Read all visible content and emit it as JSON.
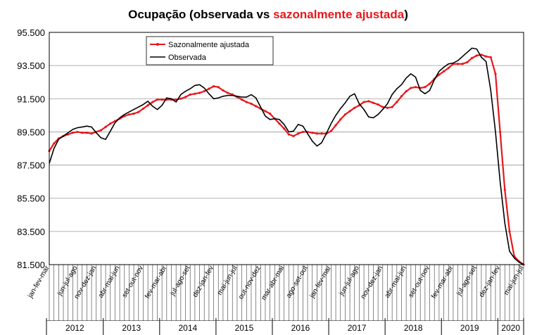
{
  "chart_data": {
    "type": "line",
    "title": {
      "part1": "Ocupação (observada vs ",
      "part2": "sazonalmente ajustada",
      "part3": ")"
    },
    "colors": {
      "observed": "#000000",
      "adjusted": "#e8171c"
    },
    "ylim": [
      81500,
      95500
    ],
    "y_ticks": [
      "95.500",
      "93.500",
      "91.500",
      "89.500",
      "87.500",
      "85.500",
      "83.500",
      "81.500"
    ],
    "y_tick_values": [
      95500,
      93500,
      91500,
      89500,
      87500,
      85500,
      83500,
      81500
    ],
    "grid": "horizontal",
    "legend": {
      "placement": "top-left",
      "entries": [
        "Sazonalmente ajustada",
        "Observada"
      ]
    },
    "n_periods": 102,
    "x_tick_labels": [
      {
        "i": 0,
        "label": "jan-fev-mar"
      },
      {
        "i": 6,
        "label": "jun-jul-ago"
      },
      {
        "i": 10,
        "label": "nov-dez-jan"
      },
      {
        "i": 15,
        "label": "abr-mai-jun"
      },
      {
        "i": 20,
        "label": "set-out-nov"
      },
      {
        "i": 25,
        "label": "fev-mar-abr"
      },
      {
        "i": 30,
        "label": "jul-ago-set"
      },
      {
        "i": 35,
        "label": "dez-jan-fev"
      },
      {
        "i": 40,
        "label": "mai-jun-jul"
      },
      {
        "i": 45,
        "label": "out-nov-dez"
      },
      {
        "i": 50,
        "label": "mar-abr-mai"
      },
      {
        "i": 55,
        "label": "ago-set-out"
      },
      {
        "i": 60,
        "label": "jan-fev-mar"
      },
      {
        "i": 66,
        "label": "jun-jul-ago"
      },
      {
        "i": 71,
        "label": "nov-dez-jan"
      },
      {
        "i": 76,
        "label": "abr-mai-jun"
      },
      {
        "i": 81,
        "label": "set-out-nov"
      },
      {
        "i": 86,
        "label": "fev-mar-abr"
      },
      {
        "i": 91,
        "label": "jul-ago-set"
      },
      {
        "i": 96,
        "label": "dez-jan-fev"
      },
      {
        "i": 101,
        "label": "mai-jun-jul"
      }
    ],
    "years": [
      {
        "label": "2012",
        "start": 0,
        "end": 12
      },
      {
        "label": "2013",
        "start": 12,
        "end": 24
      },
      {
        "label": "2014",
        "start": 24,
        "end": 36
      },
      {
        "label": "2015",
        "start": 36,
        "end": 48
      },
      {
        "label": "2016",
        "start": 48,
        "end": 60
      },
      {
        "label": "2017",
        "start": 60,
        "end": 72
      },
      {
        "label": "2018",
        "start": 72,
        "end": 84
      },
      {
        "label": "2019",
        "start": 84,
        "end": 96
      },
      {
        "label": "2020",
        "start": 96,
        "end": 102
      }
    ],
    "series": [
      {
        "name": "Sazonalmente ajustada",
        "values": [
          88350,
          88800,
          89100,
          89250,
          89350,
          89450,
          89500,
          89450,
          89450,
          89400,
          89500,
          89600,
          89800,
          90000,
          90150,
          90300,
          90450,
          90550,
          90600,
          90700,
          90900,
          91100,
          91300,
          91450,
          91450,
          91450,
          91450,
          91450,
          91500,
          91600,
          91750,
          91800,
          91850,
          91950,
          92100,
          92250,
          92200,
          92000,
          91850,
          91750,
          91600,
          91450,
          91300,
          91200,
          91050,
          90900,
          90750,
          90600,
          90300,
          90000,
          89700,
          89350,
          89250,
          89400,
          89500,
          89500,
          89450,
          89400,
          89400,
          89400,
          89550,
          89900,
          90250,
          90550,
          90750,
          90950,
          91100,
          91300,
          91350,
          91250,
          91150,
          91000,
          90950,
          91000,
          91300,
          91650,
          91950,
          92150,
          92200,
          92150,
          92200,
          92400,
          92700,
          92950,
          93150,
          93350,
          93600,
          93600,
          93600,
          93700,
          93950,
          94100,
          94150,
          94050,
          94000,
          93000,
          89500,
          86000,
          83500,
          82000,
          81700,
          81500
        ]
      },
      {
        "name": "Observada",
        "values": [
          87600,
          88500,
          89050,
          89250,
          89450,
          89650,
          89750,
          89800,
          89850,
          89800,
          89450,
          89150,
          89050,
          89550,
          90050,
          90350,
          90550,
          90700,
          90850,
          91000,
          91150,
          91350,
          91050,
          90850,
          91100,
          91550,
          91500,
          91300,
          91750,
          91950,
          92100,
          92300,
          92350,
          92150,
          91800,
          91500,
          91550,
          91650,
          91700,
          91700,
          91650,
          91600,
          91600,
          91750,
          91550,
          91000,
          90450,
          90250,
          90300,
          90250,
          89950,
          89500,
          89550,
          89950,
          89850,
          89400,
          88950,
          88650,
          88850,
          89400,
          90000,
          90500,
          90900,
          91250,
          91650,
          91800,
          91200,
          90850,
          90400,
          90350,
          90550,
          90850,
          91200,
          91750,
          92100,
          92350,
          92750,
          93000,
          92800,
          92000,
          91800,
          92000,
          92650,
          93150,
          93400,
          93600,
          93650,
          93800,
          94050,
          94300,
          94550,
          94500,
          94000,
          93750,
          92000,
          89500,
          86500,
          84000,
          82300,
          81900,
          81650,
          81500
        ]
      }
    ]
  }
}
